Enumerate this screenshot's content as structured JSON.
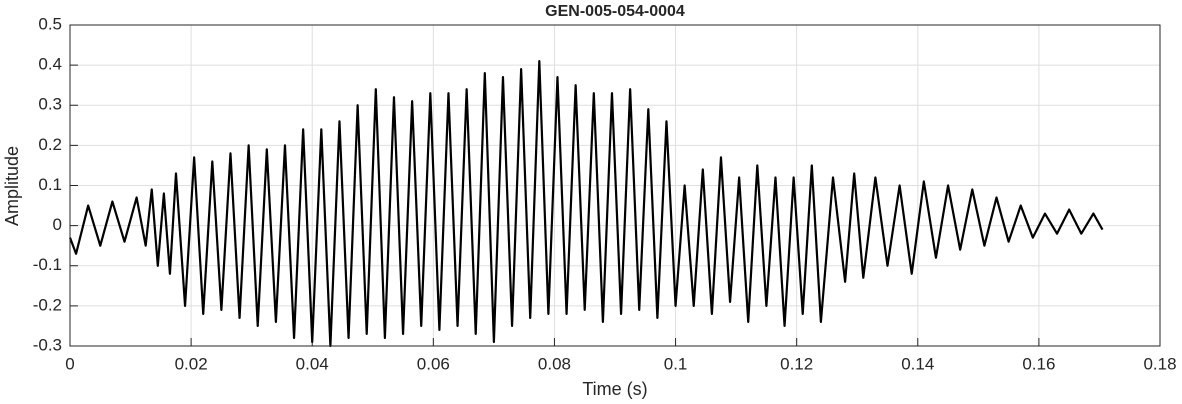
{
  "chart_data": {
    "type": "line",
    "title": "GEN-005-054-0004",
    "x_label": "Time (s)",
    "y_label": "Amplitude",
    "x": [
      0,
      0.001,
      0.003,
      0.005,
      0.007,
      0.009,
      0.011,
      0.0125,
      0.0135,
      0.0145,
      0.0155,
      0.0165,
      0.0175,
      0.019,
      0.0205,
      0.022,
      0.0235,
      0.025,
      0.0265,
      0.028,
      0.0295,
      0.031,
      0.0325,
      0.034,
      0.0355,
      0.037,
      0.0385,
      0.04,
      0.0415,
      0.043,
      0.0445,
      0.046,
      0.0475,
      0.049,
      0.0505,
      0.052,
      0.0535,
      0.055,
      0.0565,
      0.058,
      0.0595,
      0.061,
      0.0625,
      0.064,
      0.0655,
      0.067,
      0.0685,
      0.07,
      0.0715,
      0.073,
      0.0745,
      0.076,
      0.0775,
      0.079,
      0.0805,
      0.082,
      0.0835,
      0.085,
      0.0865,
      0.088,
      0.0895,
      0.091,
      0.0925,
      0.094,
      0.0955,
      0.097,
      0.0985,
      0.1,
      0.1015,
      0.103,
      0.1045,
      0.106,
      0.1075,
      0.109,
      0.1105,
      0.112,
      0.1135,
      0.115,
      0.1165,
      0.118,
      0.1195,
      0.121,
      0.1225,
      0.124,
      0.126,
      0.128,
      0.1295,
      0.131,
      0.133,
      0.135,
      0.137,
      0.139,
      0.141,
      0.143,
      0.145,
      0.147,
      0.149,
      0.151,
      0.153,
      0.155,
      0.157,
      0.159,
      0.161,
      0.163,
      0.165,
      0.167,
      0.169,
      0.1705
    ],
    "values": [
      -0.03,
      -0.07,
      0.05,
      -0.05,
      0.06,
      -0.04,
      0.07,
      -0.05,
      0.09,
      -0.1,
      0.08,
      -0.12,
      0.13,
      -0.2,
      0.17,
      -0.22,
      0.16,
      -0.21,
      0.18,
      -0.23,
      0.2,
      -0.25,
      0.19,
      -0.24,
      0.2,
      -0.28,
      0.24,
      -0.29,
      0.24,
      -0.3,
      0.26,
      -0.28,
      0.3,
      -0.27,
      0.34,
      -0.28,
      0.32,
      -0.27,
      0.31,
      -0.25,
      0.33,
      -0.26,
      0.33,
      -0.25,
      0.34,
      -0.27,
      0.38,
      -0.29,
      0.37,
      -0.25,
      0.39,
      -0.23,
      0.41,
      -0.22,
      0.37,
      -0.22,
      0.35,
      -0.21,
      0.33,
      -0.24,
      0.33,
      -0.22,
      0.34,
      -0.21,
      0.29,
      -0.23,
      0.26,
      -0.2,
      0.1,
      -0.2,
      0.14,
      -0.22,
      0.17,
      -0.19,
      0.12,
      -0.24,
      0.15,
      -0.2,
      0.12,
      -0.25,
      0.12,
      -0.22,
      0.15,
      -0.24,
      0.12,
      -0.14,
      0.13,
      -0.13,
      0.12,
      -0.1,
      0.1,
      -0.12,
      0.11,
      -0.08,
      0.1,
      -0.06,
      0.09,
      -0.05,
      0.07,
      -0.04,
      0.05,
      -0.03,
      0.03,
      -0.02,
      0.04,
      -0.02,
      0.03,
      -0.01
    ],
    "color": "#000000",
    "xlim": [
      0,
      0.18
    ],
    "xticks": [
      0,
      0.02,
      0.04,
      0.06,
      0.08,
      0.1,
      0.12,
      0.14,
      0.16,
      0.18
    ],
    "ylim": [
      -0.3,
      0.5
    ],
    "yticks": [
      -0.3,
      -0.2,
      -0.1,
      0,
      0.1,
      0.2,
      0.3,
      0.4,
      0.5
    ],
    "grid": true
  }
}
